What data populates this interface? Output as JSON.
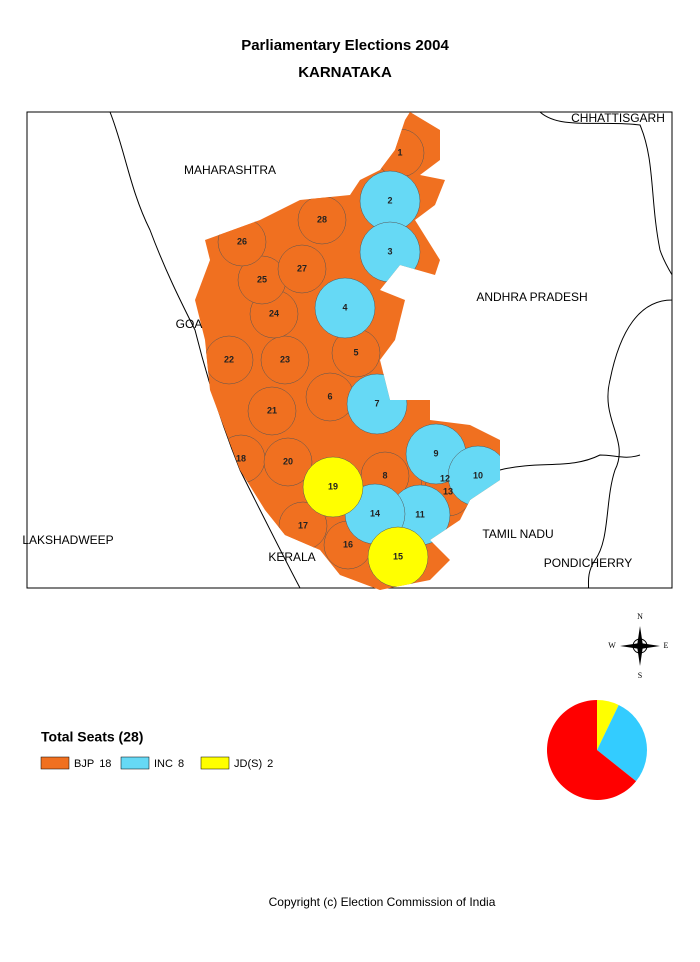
{
  "header": {
    "title": "Parliamentary Elections 2004",
    "subtitle": "KARNATAKA"
  },
  "map": {
    "neighbors": [
      "MAHARASHTRA",
      "CHHATTISGARH",
      "ANDHRA PRADESH",
      "GOA",
      "LAKSHADWEEP",
      "TAMIL NADU",
      "KERALA",
      "PONDICHERRY"
    ],
    "constituencies": [
      {
        "label": "1",
        "party": 0
      },
      {
        "label": "2",
        "party": 1
      },
      {
        "label": "3",
        "party": 1
      },
      {
        "label": "4",
        "party": 1
      },
      {
        "label": "5",
        "party": 0
      },
      {
        "label": "6",
        "party": 0
      },
      {
        "label": "7",
        "party": 1
      },
      {
        "label": "8",
        "party": 0
      },
      {
        "label": "9",
        "party": 1
      },
      {
        "label": "10",
        "party": 1
      },
      {
        "label": "11",
        "party": 1
      },
      {
        "label": "12",
        "party": 0
      },
      {
        "label": "13",
        "party": 0
      },
      {
        "label": "14",
        "party": 1
      },
      {
        "label": "15",
        "party": 2
      },
      {
        "label": "16",
        "party": 0
      },
      {
        "label": "17",
        "party": 0
      },
      {
        "label": "18",
        "party": 0
      },
      {
        "label": "19",
        "party": 2
      },
      {
        "label": "20",
        "party": 0
      },
      {
        "label": "21",
        "party": 0
      },
      {
        "label": "22",
        "party": 0
      },
      {
        "label": "23",
        "party": 0
      },
      {
        "label": "24",
        "party": 0
      },
      {
        "label": "25",
        "party": 0
      },
      {
        "label": "26",
        "party": 0
      },
      {
        "label": "27",
        "party": 0
      },
      {
        "label": "28",
        "party": 0
      }
    ]
  },
  "compass": {
    "n": "N",
    "s": "S",
    "e": "E",
    "w": "W"
  },
  "legend": {
    "title": "Total Seats (28)",
    "items": [
      {
        "name": "BJP",
        "value": 18,
        "color": "#f07020",
        "pie_color": "#ff0000"
      },
      {
        "name": "INC",
        "value": 8,
        "color": "#66d9f5",
        "pie_color": "#33ccff"
      },
      {
        "name": "JD(S)",
        "value": 2,
        "color": "#ffff00",
        "pie_color": "#ffff00"
      }
    ]
  },
  "copyright": "Copyright (c) Election Commission of India"
}
